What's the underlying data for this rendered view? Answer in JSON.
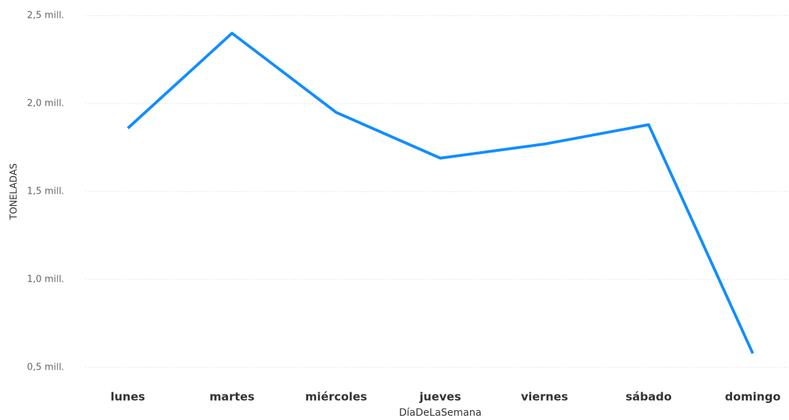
{
  "chart_data": {
    "type": "line",
    "x_label": "DíaDeLaSemana",
    "y_label": "TONELADAS",
    "categories": [
      "lunes",
      "martes",
      "miércoles",
      "jueves",
      "viernes",
      "sábado",
      "domingo"
    ],
    "series": [
      {
        "name": "TONELADAS",
        "color": "#118dff",
        "values": [
          1860000,
          2400000,
          1950000,
          1690000,
          1770000,
          1880000,
          580000
        ]
      }
    ],
    "ylim": [
      500000,
      2500000
    ],
    "yticks": [
      {
        "value": 500000,
        "label": "0,5 mill."
      },
      {
        "value": 1000000,
        "label": "1,0 mill."
      },
      {
        "value": 1500000,
        "label": "1,5 mill."
      },
      {
        "value": 2000000,
        "label": "2,0 mill."
      },
      {
        "value": 2500000,
        "label": "2,5 mill."
      }
    ],
    "grid": true
  }
}
